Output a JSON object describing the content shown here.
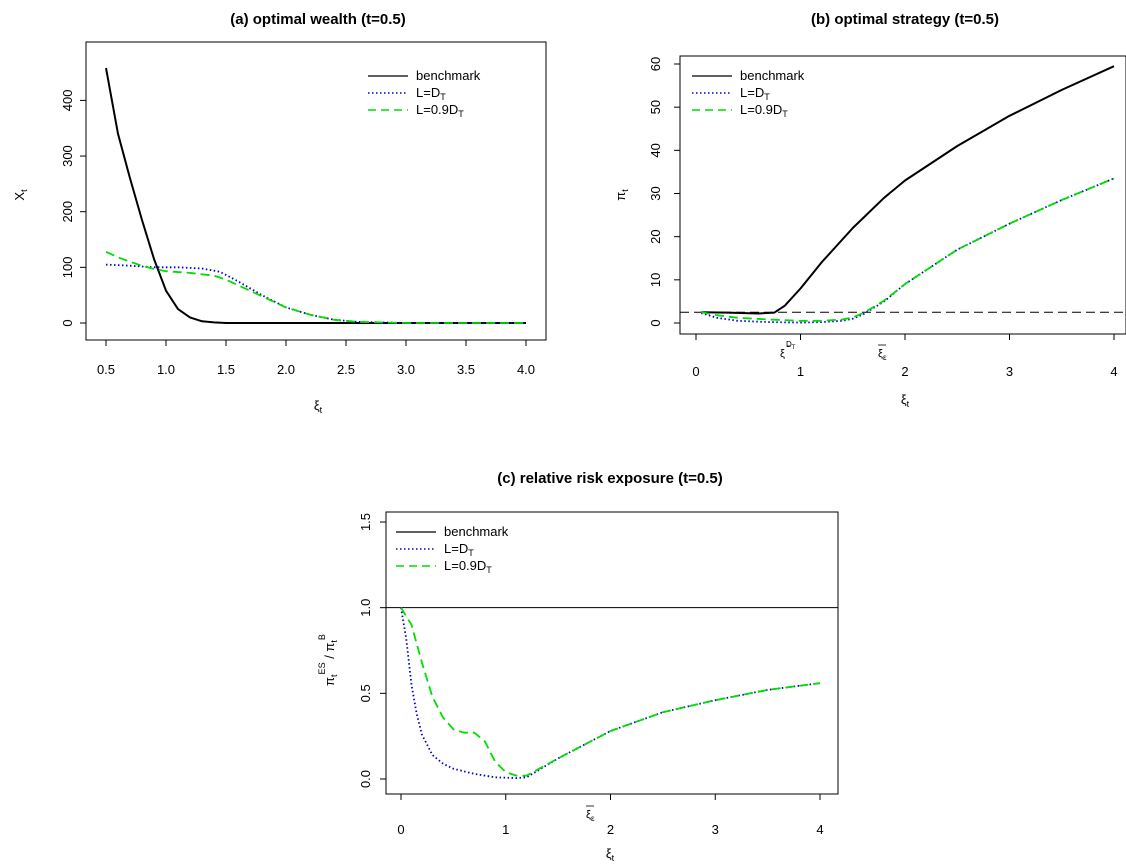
{
  "chart_data": [
    {
      "type": "line",
      "title": "(a) optimal wealth (t=0.5)",
      "xlabel": "ξt",
      "ylabel": "Xt",
      "xlim": [
        0.5,
        4.0
      ],
      "ylim": [
        0,
        460
      ],
      "xticks": [
        "0.5",
        "1.0",
        "1.5",
        "2.0",
        "2.5",
        "3.0",
        "3.5",
        "4.0"
      ],
      "yticks": [
        "0",
        "100",
        "200",
        "300",
        "400"
      ],
      "legend_position": "top-right",
      "legend": [
        "benchmark",
        "L=DT",
        "L=0.9DT"
      ],
      "series": [
        {
          "name": "benchmark",
          "color": "#000000",
          "style": "solid",
          "x": [
            0.5,
            0.6,
            0.7,
            0.8,
            0.9,
            1.0,
            1.1,
            1.2,
            1.3,
            1.4,
            1.5,
            2.0,
            2.5,
            3.0,
            3.5,
            4.0
          ],
          "y": [
            458,
            340,
            260,
            185,
            115,
            58,
            25,
            10,
            3,
            1,
            0,
            0,
            0,
            0,
            0,
            0
          ]
        },
        {
          "name": "L=DT",
          "color": "#0000cc",
          "style": "dotted",
          "x": [
            0.5,
            0.7,
            0.9,
            1.1,
            1.3,
            1.45,
            1.6,
            1.8,
            2.0,
            2.2,
            2.4,
            2.6,
            3.0,
            3.5,
            4.0
          ],
          "y": [
            105,
            103,
            100,
            100,
            98,
            92,
            75,
            50,
            28,
            15,
            6,
            2,
            0,
            0,
            0
          ]
        },
        {
          "name": "L=0.9DT",
          "color": "#00dd00",
          "style": "dashed",
          "x": [
            0.5,
            0.6,
            0.7,
            0.8,
            0.9,
            1.0,
            1.2,
            1.4,
            1.5,
            1.7,
            2.0,
            2.2,
            2.4,
            2.6,
            3.0,
            3.5,
            4.0
          ],
          "y": [
            128,
            118,
            110,
            103,
            97,
            93,
            90,
            85,
            78,
            58,
            28,
            15,
            6,
            2,
            0,
            0,
            0
          ]
        }
      ]
    },
    {
      "type": "line",
      "title": "(b) optimal strategy (t=0.5)",
      "xlabel": "ξt",
      "ylabel": "πt",
      "xlim": [
        0,
        4
      ],
      "ylim": [
        0,
        60
      ],
      "xticks": [
        "0",
        "1",
        "2",
        "3",
        "4"
      ],
      "yticks": [
        "0",
        "10",
        "20",
        "30",
        "40",
        "50",
        "60"
      ],
      "xtick_annotations": [
        "ξ̂DT",
        "ξ̅ε"
      ],
      "legend_position": "top-left",
      "legend": [
        "benchmark",
        "L=DT",
        "L=0.9DT"
      ],
      "hline": 2.5,
      "series": [
        {
          "name": "benchmark",
          "color": "#000000",
          "style": "solid",
          "x": [
            0.05,
            0.3,
            0.6,
            0.75,
            0.85,
            1.0,
            1.2,
            1.5,
            1.8,
            2.0,
            2.5,
            3.0,
            3.5,
            4.0
          ],
          "y": [
            2.5,
            2.4,
            2.2,
            2.4,
            4,
            8,
            14,
            22,
            29,
            33,
            41,
            48,
            54,
            59.5
          ]
        },
        {
          "name": "L=DT",
          "color": "#0000cc",
          "style": "dotted",
          "x": [
            0.05,
            0.2,
            0.4,
            0.7,
            1.0,
            1.2,
            1.4,
            1.5,
            1.6,
            1.8,
            2.0,
            2.5,
            3.0,
            3.5,
            4.0
          ],
          "y": [
            2.3,
            1.2,
            0.5,
            0.2,
            0.1,
            0.2,
            0.5,
            1.0,
            2.0,
            5,
            9,
            17,
            23,
            28.5,
            33.5
          ]
        },
        {
          "name": "L=0.9DT",
          "color": "#00dd00",
          "style": "dashed",
          "x": [
            0.05,
            0.2,
            0.4,
            0.7,
            1.0,
            1.2,
            1.4,
            1.5,
            1.6,
            1.8,
            2.0,
            2.5,
            3.0,
            3.5,
            4.0
          ],
          "y": [
            2.5,
            1.8,
            1.2,
            0.8,
            0.5,
            0.5,
            0.8,
            1.3,
            2.3,
            5.2,
            9,
            17,
            23,
            28.5,
            33.5
          ]
        }
      ]
    },
    {
      "type": "line",
      "title": "(c) relative risk exposure (t=0.5)",
      "xlabel": "ξt",
      "ylabel": "πtES / πtB",
      "xlim": [
        0,
        4
      ],
      "ylim": [
        0,
        1.5
      ],
      "xticks": [
        "0",
        "1",
        "2",
        "3",
        "4"
      ],
      "yticks": [
        "0.0",
        "0.5",
        "1.0",
        "1.5"
      ],
      "xtick_annotations": [
        "ξ̅ε"
      ],
      "legend_position": "top-left",
      "legend": [
        "benchmark",
        "L=DT",
        "L=0.9DT"
      ],
      "hline": 1.0,
      "series": [
        {
          "name": "L=DT",
          "color": "#0000cc",
          "style": "dotted",
          "x": [
            0.0,
            0.05,
            0.1,
            0.15,
            0.2,
            0.3,
            0.4,
            0.5,
            0.7,
            0.9,
            1.1,
            1.2,
            1.5,
            2.0,
            2.5,
            3.0,
            3.5,
            4.0
          ],
          "y": [
            1.0,
            0.82,
            0.55,
            0.38,
            0.26,
            0.14,
            0.09,
            0.06,
            0.03,
            0.01,
            0.005,
            0.01,
            0.12,
            0.28,
            0.39,
            0.46,
            0.52,
            0.56
          ]
        },
        {
          "name": "L=0.9DT",
          "color": "#00dd00",
          "style": "dashed",
          "x": [
            0.0,
            0.1,
            0.2,
            0.3,
            0.4,
            0.5,
            0.6,
            0.7,
            0.8,
            0.9,
            1.0,
            1.1,
            1.2,
            1.5,
            2.0,
            2.5,
            3.0,
            3.5,
            4.0
          ],
          "y": [
            1.0,
            0.9,
            0.68,
            0.48,
            0.36,
            0.29,
            0.27,
            0.27,
            0.22,
            0.1,
            0.04,
            0.02,
            0.02,
            0.12,
            0.28,
            0.39,
            0.46,
            0.52,
            0.56
          ]
        }
      ]
    }
  ]
}
